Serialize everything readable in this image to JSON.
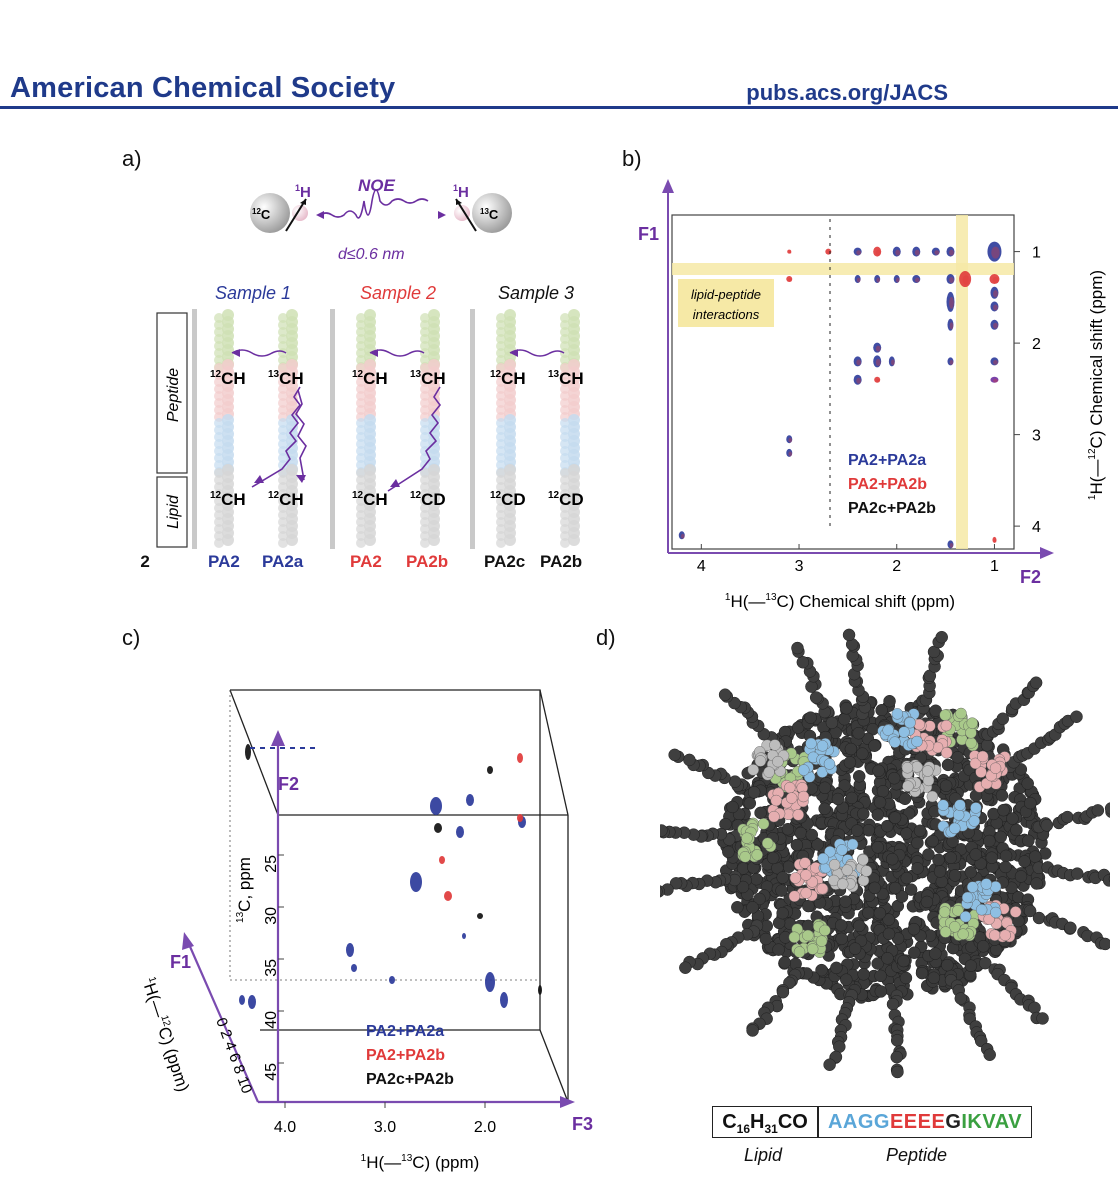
{
  "header": {
    "journal": "American Chemical Society",
    "url": "pubs.acs.org/JACS"
  },
  "panels": {
    "a": "a)",
    "b": "b)",
    "c": "c)",
    "d": "d)"
  },
  "panel_a": {
    "left_atom": "12C",
    "right_atom": "13C",
    "proton": "1H",
    "noe": "NOE",
    "distance": "d≤0.6 nm",
    "samples": [
      "Sample 1",
      "Sample 2",
      "Sample 3"
    ],
    "side_labels": [
      "Peptide",
      "Lipid"
    ],
    "top_labels": [
      "12CH",
      "13CH",
      "12CH",
      "13CH",
      "12CH",
      "13CH"
    ],
    "bottom_labels": [
      "12CH",
      "12CH",
      "12CH",
      "12CD",
      "12CD",
      "12CD"
    ],
    "molecules": [
      "PA2",
      "PA2",
      "PA2a",
      "PA2",
      "PA2b",
      "PA2c",
      "PA2b"
    ],
    "colors": {
      "blue": "#2b3a9a",
      "red": "#e03a3a",
      "black": "#111111",
      "purple": "#6b2fa0"
    }
  },
  "panel_b": {
    "f1": "F1",
    "f2": "F2",
    "xlabel": "1H(—13C) Chemical shift (ppm)",
    "ylabel": "1H(—12C) Chemical shift (ppm)",
    "xticks": [
      "4",
      "3",
      "2",
      "1"
    ],
    "yticks": [
      "1",
      "2",
      "3",
      "4"
    ],
    "annotation": "lipid-peptide interactions",
    "legend": [
      "PA2+PA2a",
      "PA2+PA2b",
      "PA2c+PA2b"
    ]
  },
  "panel_c": {
    "f1": "F1",
    "f2": "F2",
    "f3": "F3",
    "c13_label": "13C, ppm",
    "c13_ticks": [
      "25",
      "30",
      "35",
      "40",
      "45"
    ],
    "h12_label": "1H(—12C)  (ppm)",
    "h12_ticks": "0 2 4 6 8 10",
    "xlabel": "1H(—13C)  (ppm)",
    "xticks": [
      "4.0",
      "3.0",
      "2.0"
    ],
    "legend": [
      "PA2+PA2a",
      "PA2+PA2b",
      "PA2c+PA2b"
    ]
  },
  "panel_d": {
    "lipid_formula": "C16H31CO",
    "peptide_seq": [
      "AAGG",
      "EEEE",
      "G",
      "IKVAV"
    ],
    "lipid_label": "Lipid",
    "peptide_label": "Peptide"
  }
}
